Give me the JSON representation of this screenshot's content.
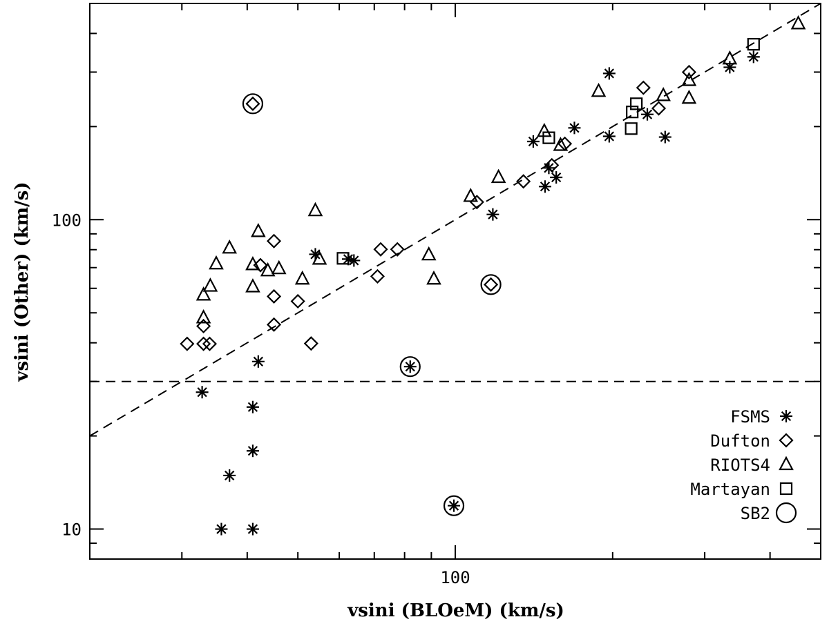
{
  "chart_data": {
    "type": "scatter",
    "x_label": "vsini (BLOeM) (km/s)",
    "y_label": "vsini (Other) (km/s)",
    "log_x": true,
    "log_y": true,
    "xlim": [
      20,
      500
    ],
    "ylim": [
      8,
      500
    ],
    "xticks": [
      100
    ],
    "yticks": [
      10,
      100
    ],
    "x_minor_ticks": [
      30,
      40,
      50,
      60,
      70,
      80,
      90,
      200,
      300,
      400
    ],
    "y_minor_ticks": [
      9,
      20,
      30,
      40,
      50,
      60,
      70,
      80,
      90,
      200,
      300,
      400
    ],
    "reference_lines": [
      {
        "x": [
          20,
          500
        ],
        "y": [
          30,
          30
        ]
      },
      {
        "x": [
          20,
          500
        ],
        "y": [
          20,
          500
        ]
      }
    ],
    "legend_position": "lower right",
    "color": "#000000",
    "series": [
      {
        "name": "FSMS",
        "marker": "asterisk",
        "x": [
          35.7,
          41,
          37,
          41,
          41,
          32.8,
          42,
          54,
          62.4,
          64,
          118,
          148.5,
          151,
          156,
          141,
          169,
          197,
          197,
          233,
          252,
          335,
          372,
          82,
          99.4
        ],
        "y": [
          10,
          10,
          14.9,
          17.9,
          24.8,
          27.7,
          34.8,
          77.3,
          74.6,
          73.8,
          104,
          128,
          147,
          137,
          179,
          198,
          186,
          297,
          219,
          185,
          311,
          336,
          33.5,
          11.9
        ]
      },
      {
        "name": "Dufton",
        "marker": "diamond",
        "x": [
          41,
          30.7,
          33,
          33.9,
          33,
          45,
          42.4,
          45,
          45,
          50,
          53,
          71,
          72,
          77.5,
          117,
          110,
          135,
          153,
          162,
          229,
          245,
          280
        ],
        "y": [
          237,
          39.7,
          39.7,
          39.7,
          45.3,
          85.3,
          71.3,
          56.5,
          45.8,
          54.5,
          39.8,
          65.6,
          80.2,
          80.2,
          61.7,
          114,
          133,
          150,
          176,
          267,
          229,
          300
        ]
      },
      {
        "name": "RIOTS4",
        "marker": "triangle",
        "x": [
          33,
          33,
          34,
          34.9,
          37,
          42,
          41,
          41,
          43.8,
          46,
          51,
          54,
          55,
          89,
          91,
          107,
          121,
          148,
          159,
          188,
          250,
          280,
          280,
          335,
          453
        ],
        "y": [
          57.1,
          48.2,
          61,
          72,
          81,
          91.6,
          71.6,
          60.7,
          68.4,
          69.5,
          64.3,
          107,
          74.6,
          77,
          64.3,
          119,
          137,
          193,
          174,
          260,
          252,
          282,
          247,
          331,
          430
        ]
      },
      {
        "name": "Martayan",
        "marker": "square",
        "x": [
          61,
          151,
          217,
          218,
          222,
          372
        ],
        "y": [
          75,
          184,
          197,
          223,
          237,
          369
        ]
      },
      {
        "name": "SB2",
        "marker": "circle",
        "x": [
          41,
          82,
          99.4,
          117
        ],
        "y": [
          237,
          33.5,
          11.9,
          61.7
        ]
      }
    ]
  }
}
